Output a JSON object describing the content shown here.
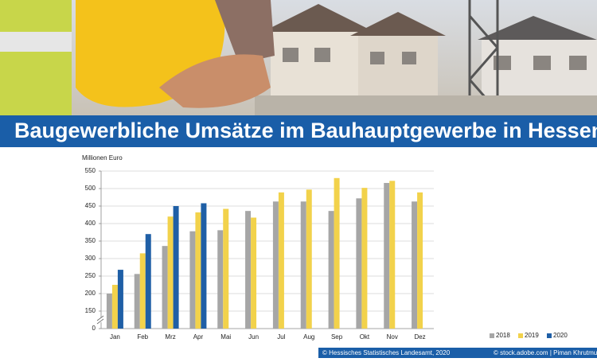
{
  "chart_data": {
    "type": "bar",
    "title": "Baugewerbliche Umsätze im Bauhauptgewerbe in Hessen",
    "y_label": "Millionen Euro",
    "categories": [
      "Jan",
      "Feb",
      "Mrz",
      "Apr",
      "Mai",
      "Jun",
      "Jul",
      "Aug",
      "Sep",
      "Okt",
      "Nov",
      "Dez"
    ],
    "series": [
      {
        "name": "2018",
        "color": "#a6a6a6",
        "values": [
          200,
          256,
          336,
          378,
          381,
          436,
          463,
          463,
          436,
          472,
          516,
          463
        ]
      },
      {
        "name": "2019",
        "color": "#f2d24b",
        "values": [
          225,
          315,
          420,
          432,
          442,
          417,
          489,
          497,
          530,
          502,
          522,
          489
        ]
      },
      {
        "name": "2020",
        "color": "#1f5fa6",
        "values": [
          268,
          370,
          450,
          458,
          null,
          null,
          null,
          null,
          null,
          null,
          null,
          null
        ]
      }
    ],
    "ylim": [
      0,
      550
    ],
    "yticks": [
      0,
      150,
      200,
      250,
      300,
      350,
      400,
      450,
      500,
      550
    ],
    "axis_break": true,
    "grid": true,
    "legend": "bottom-right",
    "source": "© Hessisches Statistisches Landesamt, 2020",
    "credit": "© stock.adobe.com | Piman Khrutmuang"
  }
}
